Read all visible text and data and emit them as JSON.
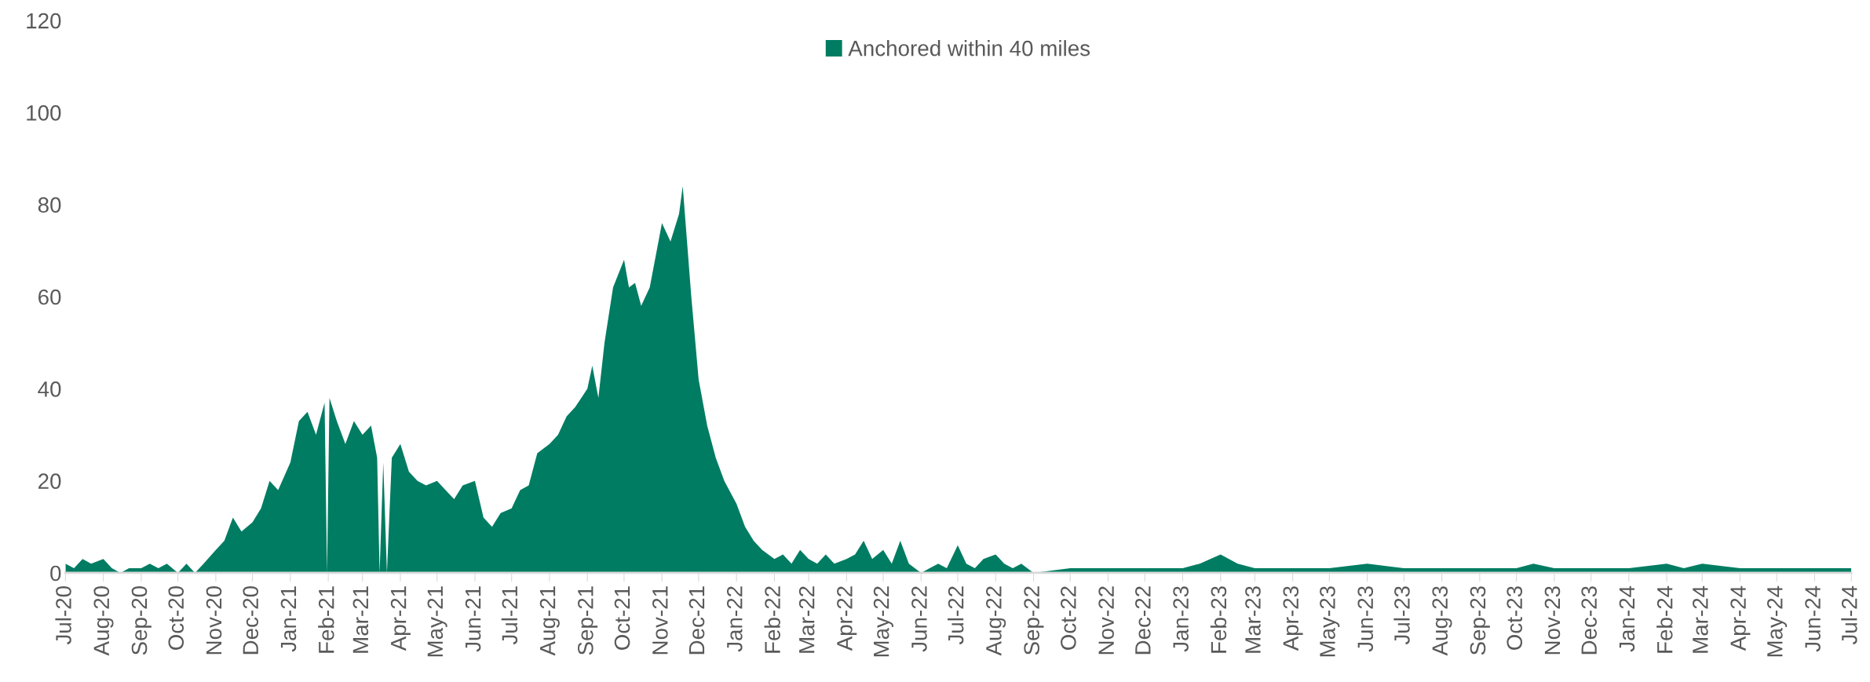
{
  "chart_data": {
    "type": "area",
    "legend": "top",
    "grid": false,
    "x": [
      "2020-07-01",
      "2020-07-08",
      "2020-07-15",
      "2020-07-22",
      "2020-08-01",
      "2020-08-08",
      "2020-08-15",
      "2020-08-22",
      "2020-09-01",
      "2020-09-08",
      "2020-09-15",
      "2020-09-22",
      "2020-10-01",
      "2020-10-08",
      "2020-10-15",
      "2020-10-22",
      "2020-11-01",
      "2020-11-08",
      "2020-11-15",
      "2020-11-22",
      "2020-12-01",
      "2020-12-08",
      "2020-12-15",
      "2020-12-22",
      "2021-01-01",
      "2021-01-08",
      "2021-01-15",
      "2021-01-22",
      "2021-01-29",
      "2021-01-31",
      "2021-02-02",
      "2021-02-08",
      "2021-02-15",
      "2021-02-22",
      "2021-03-01",
      "2021-03-08",
      "2021-03-13",
      "2021-03-15",
      "2021-03-18",
      "2021-03-21",
      "2021-03-25",
      "2021-04-01",
      "2021-04-08",
      "2021-04-15",
      "2021-04-22",
      "2021-05-01",
      "2021-05-08",
      "2021-05-15",
      "2021-05-22",
      "2021-06-01",
      "2021-06-08",
      "2021-06-15",
      "2021-06-22",
      "2021-07-01",
      "2021-07-08",
      "2021-07-15",
      "2021-07-22",
      "2021-08-01",
      "2021-08-08",
      "2021-08-15",
      "2021-08-22",
      "2021-09-01",
      "2021-09-05",
      "2021-09-10",
      "2021-09-15",
      "2021-09-22",
      "2021-10-01",
      "2021-10-05",
      "2021-10-10",
      "2021-10-15",
      "2021-10-22",
      "2021-11-01",
      "2021-11-08",
      "2021-11-15",
      "2021-11-18",
      "2021-11-25",
      "2021-12-01",
      "2021-12-08",
      "2021-12-15",
      "2021-12-22",
      "2022-01-01",
      "2022-01-08",
      "2022-01-15",
      "2022-01-22",
      "2022-02-01",
      "2022-02-08",
      "2022-02-15",
      "2022-02-22",
      "2022-03-01",
      "2022-03-08",
      "2022-03-15",
      "2022-03-22",
      "2022-04-01",
      "2022-04-08",
      "2022-04-15",
      "2022-04-22",
      "2022-05-01",
      "2022-05-08",
      "2022-05-15",
      "2022-05-22",
      "2022-06-01",
      "2022-06-08",
      "2022-06-15",
      "2022-06-22",
      "2022-07-01",
      "2022-07-08",
      "2022-07-15",
      "2022-07-22",
      "2022-08-01",
      "2022-08-08",
      "2022-08-15",
      "2022-08-22",
      "2022-09-01",
      "2022-10-01",
      "2022-11-01",
      "2022-12-01",
      "2023-01-01",
      "2023-01-15",
      "2023-02-01",
      "2023-02-15",
      "2023-03-01",
      "2023-04-01",
      "2023-05-01",
      "2023-06-01",
      "2023-07-01",
      "2023-08-01",
      "2023-09-01",
      "2023-10-01",
      "2023-10-15",
      "2023-11-01",
      "2023-12-01",
      "2024-01-01",
      "2024-02-01",
      "2024-02-15",
      "2024-03-01",
      "2024-04-01",
      "2024-05-01",
      "2024-06-01",
      "2024-07-01"
    ],
    "series": [
      {
        "name": "Anchored within 40 miles",
        "color": "#007c62",
        "values": [
          2,
          1,
          3,
          2,
          3,
          1,
          0,
          1,
          1,
          2,
          1,
          2,
          0,
          2,
          0,
          2,
          5,
          7,
          12,
          9,
          11,
          14,
          20,
          18,
          24,
          33,
          35,
          30,
          37,
          0,
          38,
          33,
          28,
          33,
          30,
          32,
          25,
          0,
          24,
          0,
          25,
          28,
          22,
          20,
          19,
          20,
          18,
          16,
          19,
          20,
          12,
          10,
          13,
          14,
          18,
          19,
          26,
          28,
          30,
          34,
          36,
          40,
          45,
          38,
          50,
          62,
          68,
          62,
          63,
          58,
          62,
          76,
          72,
          78,
          84,
          60,
          42,
          32,
          25,
          20,
          15,
          10,
          7,
          5,
          3,
          4,
          2,
          5,
          3,
          2,
          4,
          2,
          3,
          4,
          7,
          3,
          5,
          2,
          7,
          2,
          0,
          1,
          2,
          1,
          6,
          2,
          1,
          3,
          4,
          2,
          1,
          2,
          0,
          1,
          1,
          1,
          1,
          2,
          4,
          2,
          1,
          1,
          1,
          2,
          1,
          1,
          1,
          1,
          2,
          1,
          1,
          1,
          2,
          1,
          2,
          1,
          1,
          1,
          1
        ]
      }
    ],
    "ylim": [
      0,
      120
    ],
    "yticks": [
      0,
      20,
      40,
      60,
      80,
      100,
      120
    ],
    "xlim": [
      "2020-07-01",
      "2024-07-01"
    ],
    "xticks": [
      {
        "value": "2020-07-01",
        "label": "Jul-20"
      },
      {
        "value": "2020-08-01",
        "label": "Aug-20"
      },
      {
        "value": "2020-09-01",
        "label": "Sep-20"
      },
      {
        "value": "2020-10-01",
        "label": "Oct-20"
      },
      {
        "value": "2020-11-01",
        "label": "Nov-20"
      },
      {
        "value": "2020-12-01",
        "label": "Dec-20"
      },
      {
        "value": "2021-01-01",
        "label": "Jan-21"
      },
      {
        "value": "2021-02-01",
        "label": "Feb-21"
      },
      {
        "value": "2021-03-01",
        "label": "Mar-21"
      },
      {
        "value": "2021-04-01",
        "label": "Apr-21"
      },
      {
        "value": "2021-05-01",
        "label": "May-21"
      },
      {
        "value": "2021-06-01",
        "label": "Jun-21"
      },
      {
        "value": "2021-07-01",
        "label": "Jul-21"
      },
      {
        "value": "2021-08-01",
        "label": "Aug-21"
      },
      {
        "value": "2021-09-01",
        "label": "Sep-21"
      },
      {
        "value": "2021-10-01",
        "label": "Oct-21"
      },
      {
        "value": "2021-11-01",
        "label": "Nov-21"
      },
      {
        "value": "2021-12-01",
        "label": "Dec-21"
      },
      {
        "value": "2022-01-01",
        "label": "Jan-22"
      },
      {
        "value": "2022-02-01",
        "label": "Feb-22"
      },
      {
        "value": "2022-03-01",
        "label": "Mar-22"
      },
      {
        "value": "2022-04-01",
        "label": "Apr-22"
      },
      {
        "value": "2022-05-01",
        "label": "May-22"
      },
      {
        "value": "2022-06-01",
        "label": "Jun-22"
      },
      {
        "value": "2022-07-01",
        "label": "Jul-22"
      },
      {
        "value": "2022-08-01",
        "label": "Aug-22"
      },
      {
        "value": "2022-09-01",
        "label": "Sep-22"
      },
      {
        "value": "2022-10-01",
        "label": "Oct-22"
      },
      {
        "value": "2022-11-01",
        "label": "Nov-22"
      },
      {
        "value": "2022-12-01",
        "label": "Dec-22"
      },
      {
        "value": "2023-01-01",
        "label": "Jan-23"
      },
      {
        "value": "2023-02-01",
        "label": "Feb-23"
      },
      {
        "value": "2023-03-01",
        "label": "Mar-23"
      },
      {
        "value": "2023-04-01",
        "label": "Apr-23"
      },
      {
        "value": "2023-05-01",
        "label": "May-23"
      },
      {
        "value": "2023-06-01",
        "label": "Jun-23"
      },
      {
        "value": "2023-07-01",
        "label": "Jul-23"
      },
      {
        "value": "2023-08-01",
        "label": "Aug-23"
      },
      {
        "value": "2023-09-01",
        "label": "Sep-23"
      },
      {
        "value": "2023-10-01",
        "label": "Oct-23"
      },
      {
        "value": "2023-11-01",
        "label": "Nov-23"
      },
      {
        "value": "2023-12-01",
        "label": "Dec-23"
      },
      {
        "value": "2024-01-01",
        "label": "Jan-24"
      },
      {
        "value": "2024-02-01",
        "label": "Feb-24"
      },
      {
        "value": "2024-03-01",
        "label": "Mar-24"
      },
      {
        "value": "2024-04-01",
        "label": "Apr-24"
      },
      {
        "value": "2024-05-01",
        "label": "May-24"
      },
      {
        "value": "2024-06-01",
        "label": "Jun-24"
      },
      {
        "value": "2024-07-01",
        "label": "Jul-24"
      }
    ]
  }
}
